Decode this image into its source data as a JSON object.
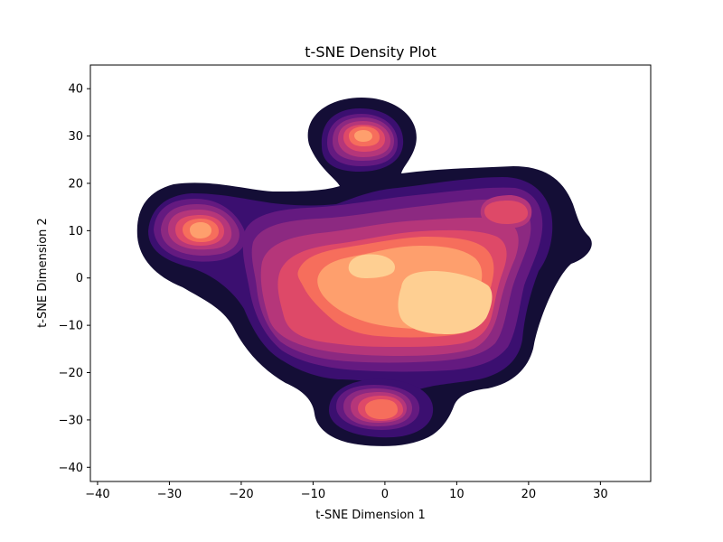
{
  "chart_data": {
    "type": "density-contour",
    "title": "t-SNE Density Plot",
    "xlabel": "t-SNE Dimension 1",
    "ylabel": "t-SNE Dimension 2",
    "xlim": [
      -41,
      37
    ],
    "ylim": [
      -43,
      45
    ],
    "xticks": [
      -40,
      -30,
      -20,
      -10,
      0,
      10,
      20,
      30
    ],
    "yticks": [
      -40,
      -30,
      -20,
      -10,
      0,
      10,
      20,
      30,
      40
    ],
    "colormap": "magma",
    "grid": false,
    "legend": "none",
    "levels": [
      {
        "level": 1,
        "color": "#140e36"
      },
      {
        "level": 2,
        "color": "#3b0f70"
      },
      {
        "level": 3,
        "color": "#641a80"
      },
      {
        "level": 4,
        "color": "#8c2981"
      },
      {
        "level": 5,
        "color": "#b5367a"
      },
      {
        "level": 6,
        "color": "#de4968"
      },
      {
        "level": 7,
        "color": "#f66e5c"
      },
      {
        "level": 8,
        "color": "#fe9f6d"
      },
      {
        "level": 9,
        "color": "#fecf92"
      }
    ],
    "clusters": [
      {
        "name": "center",
        "x": 6,
        "y": -5,
        "peak_level": 9
      },
      {
        "name": "center-left",
        "x": -2,
        "y": 2,
        "peak_level": 9
      },
      {
        "name": "left",
        "x": -25.5,
        "y": 10,
        "peak_level": 7
      },
      {
        "name": "top",
        "x": -3,
        "y": 30,
        "peak_level": 7
      },
      {
        "name": "bottom",
        "x": 0.5,
        "y": -28,
        "peak_level": 7
      },
      {
        "name": "right",
        "x": 17,
        "y": 14,
        "peak_level": 6
      }
    ]
  }
}
